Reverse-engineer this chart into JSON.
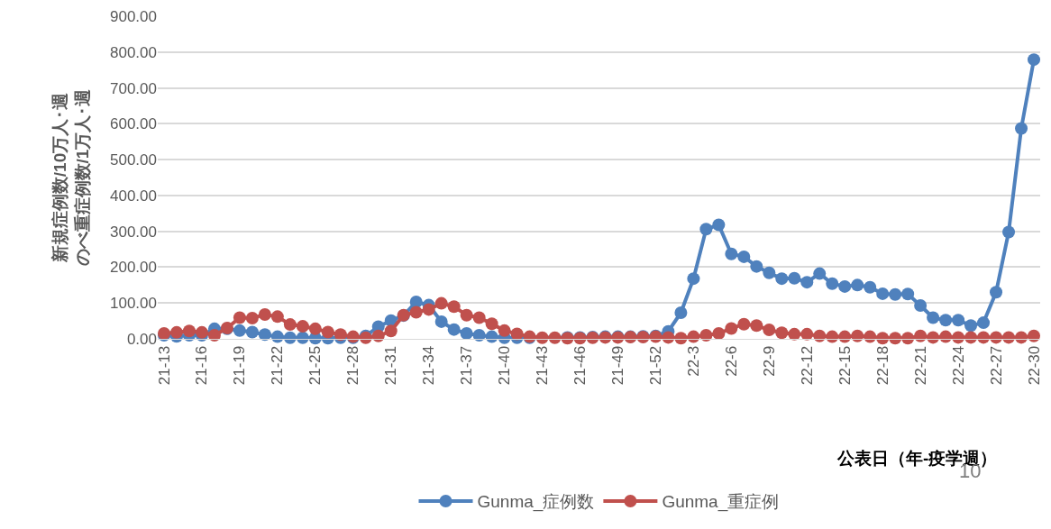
{
  "chart_data": {
    "type": "line",
    "ylabel": "新規症例数/10万人･週のべ重症例数/1万人･週",
    "annotations": [
      "公表日（年-疫学週）",
      "10"
    ],
    "categories": [
      "21-13",
      null,
      null,
      "21-16",
      null,
      null,
      "21-19",
      null,
      null,
      "21-22",
      null,
      null,
      "21-25",
      null,
      null,
      "21-28",
      null,
      null,
      "21-31",
      null,
      null,
      "21-34",
      null,
      null,
      "21-37",
      null,
      null,
      "21-40",
      null,
      null,
      "21-43",
      null,
      null,
      "21-46",
      null,
      null,
      "21-49",
      null,
      null,
      "21-52",
      null,
      null,
      "22-3",
      null,
      null,
      "22-6",
      null,
      null,
      "22-9",
      null,
      null,
      "22-12",
      null,
      null,
      "22-15",
      null,
      null,
      "22-18",
      null,
      null,
      "22-21",
      null,
      null,
      "22-24",
      null,
      null,
      "22-27",
      null,
      null,
      "22-30"
    ],
    "series": [
      {
        "name": "Gunma_症例数",
        "color": "#4f81bd",
        "values": [
          10,
          7,
          10,
          10,
          28,
          28,
          23,
          19,
          12,
          6,
          3,
          3,
          2,
          2,
          3,
          3,
          8,
          34,
          51,
          65,
          103,
          94,
          48,
          26,
          15,
          10,
          6,
          3,
          3,
          3,
          null,
          null,
          4,
          4,
          5,
          6,
          6,
          6,
          7,
          8,
          21,
          73,
          168,
          306,
          318,
          237,
          229,
          202,
          184,
          168,
          169,
          158,
          182,
          154,
          146,
          150,
          144,
          126,
          124,
          125,
          93,
          59,
          52,
          52,
          37,
          45,
          130,
          298,
          587,
          779
        ]
      },
      {
        "name": "Gunma_重症例",
        "color": "#c0504d",
        "values": [
          15,
          18,
          22,
          18,
          10,
          30,
          59,
          58,
          68,
          62,
          40,
          35,
          28,
          19,
          12,
          6,
          3,
          8,
          22,
          66,
          74,
          82,
          99,
          90,
          66,
          59,
          42,
          23,
          14,
          6,
          3,
          3,
          2,
          2,
          3,
          4,
          4,
          5,
          5,
          6,
          4,
          2,
          6,
          10,
          15,
          29,
          41,
          37,
          25,
          17,
          13,
          13,
          8,
          6,
          6,
          8,
          6,
          2,
          2,
          2,
          8,
          4,
          6,
          4,
          4,
          4,
          4,
          4,
          4,
          8
        ]
      }
    ],
    "ylim": [
      0,
      900
    ],
    "yticks": [
      {
        "value": 0,
        "label": "0.00"
      },
      {
        "value": 100,
        "label": "100.00"
      },
      {
        "value": 200,
        "label": "200.00"
      },
      {
        "value": 300,
        "label": "300.00"
      },
      {
        "value": 400,
        "label": "400.00"
      },
      {
        "value": 500,
        "label": "500.00"
      },
      {
        "value": 600,
        "label": "600.00"
      },
      {
        "value": 700,
        "label": "700.00"
      },
      {
        "value": 800,
        "label": "800.00"
      },
      {
        "value": 900,
        "label": "900.00"
      }
    ],
    "grid": "y",
    "legend": "bottom",
    "marker": "circle",
    "line_style": "solid"
  }
}
